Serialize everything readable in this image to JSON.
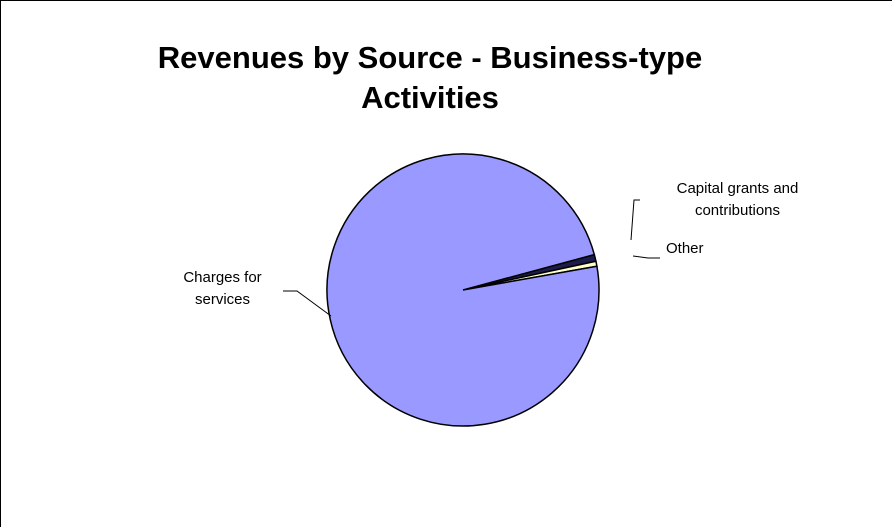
{
  "chart_data": {
    "type": "pie",
    "title": "Revenues by Source - Business-type Activities",
    "categories": [
      "Capital grants and contributions",
      "Other",
      "Charges for services"
    ],
    "values": [
      0.8,
      0.6,
      98.6
    ],
    "colors": [
      "#1c1c4a",
      "#ffffcc",
      "#9999ff"
    ]
  }
}
